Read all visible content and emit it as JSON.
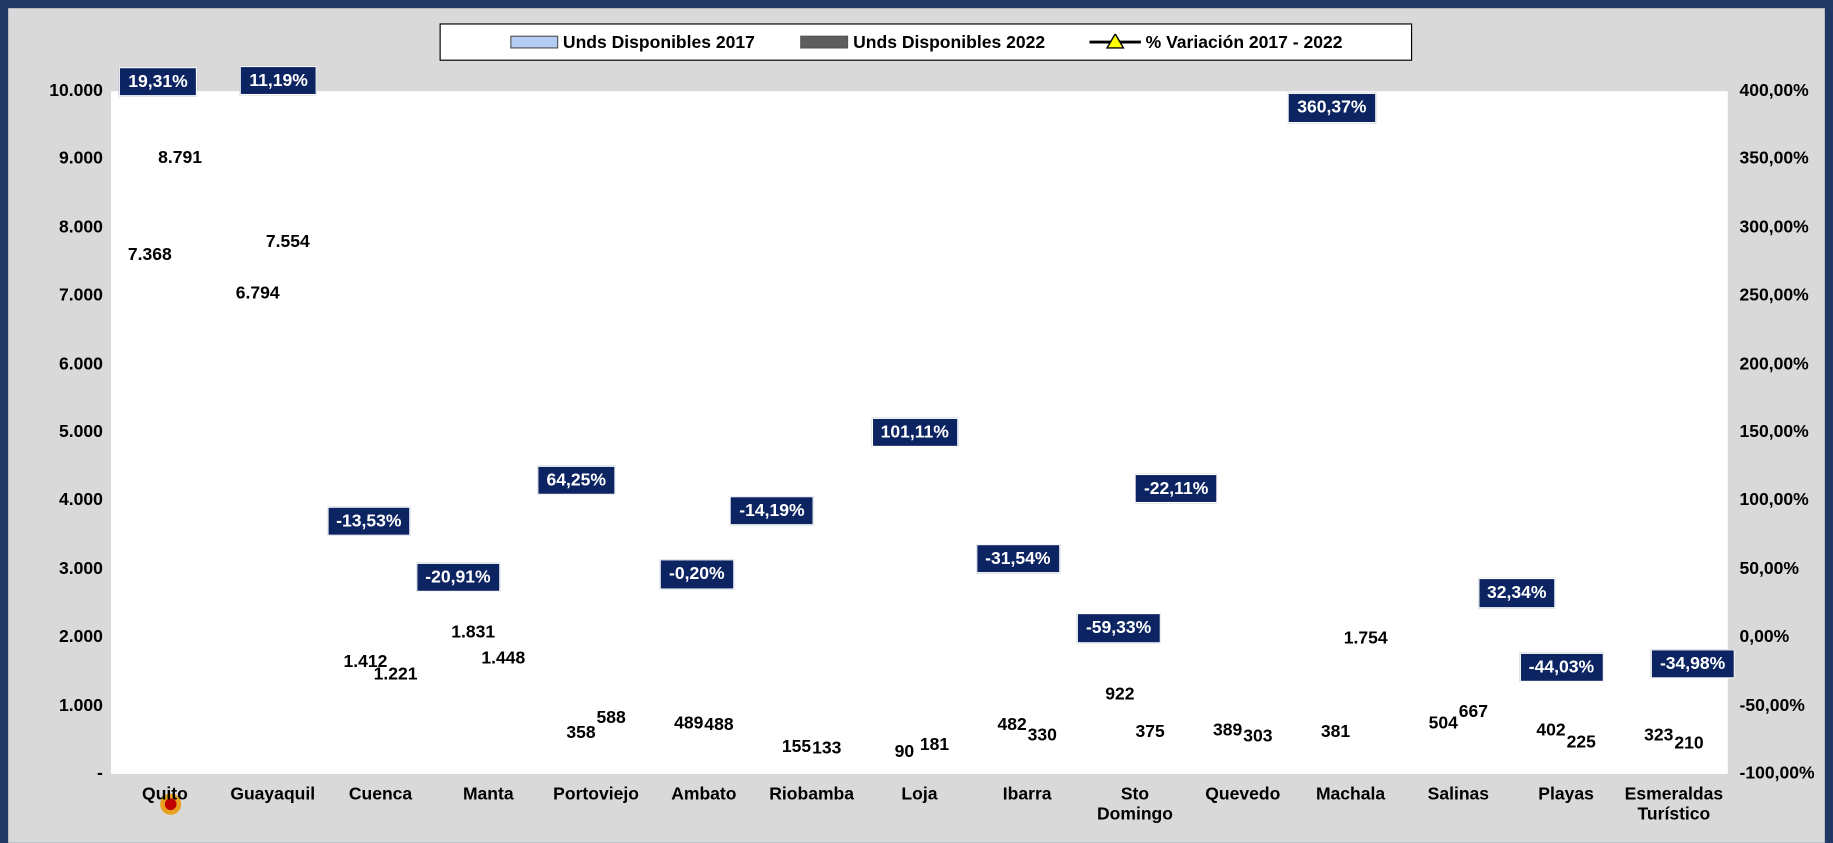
{
  "chart_data": {
    "type": "bar",
    "legend": "top",
    "grid": true,
    "categories": [
      "Quito",
      "Guayaquil",
      "Cuenca",
      "Manta",
      "Portoviejo",
      "Ambato",
      "Riobamba",
      "Loja",
      "Ibarra",
      "Sto\nDomingo",
      "Quevedo",
      "Machala",
      "Salinas",
      "Playas",
      "Esmeraldas\nTurístico"
    ],
    "series": [
      {
        "name": "Unds Disponibles 2017",
        "type": "bar",
        "color": "#b4cdf5",
        "values": [
          7368,
          6794,
          1412,
          1831,
          358,
          489,
          155,
          90,
          482,
          922,
          389,
          381,
          504,
          402,
          323
        ],
        "value_labels": [
          "7.368",
          "6.794",
          "1.412",
          "1.831",
          "358",
          "489",
          "155",
          "90",
          "482",
          "922",
          "389",
          "381",
          "504",
          "402",
          "323"
        ]
      },
      {
        "name": "Unds Disponibles 2022",
        "type": "bar",
        "color": "#5e5e5e",
        "values": [
          8791,
          7554,
          1221,
          1448,
          588,
          488,
          133,
          181,
          330,
          375,
          303,
          1754,
          667,
          225,
          210
        ],
        "value_labels": [
          "8.791",
          "7.554",
          "1.221",
          "1.448",
          "588",
          "488",
          "133",
          "181",
          "330",
          "375",
          "303",
          "1.754",
          "667",
          "225",
          "210"
        ]
      },
      {
        "name": "% Variación 2017 - 2022",
        "type": "line",
        "axis": "y2",
        "color": "#000000",
        "marker_color": "#ffff00",
        "values": [
          19.31,
          11.19,
          -13.53,
          -20.91,
          64.25,
          -0.2,
          -14.19,
          101.11,
          -31.54,
          -59.33,
          -22.11,
          360.37,
          32.34,
          -44.03,
          -34.98
        ],
        "value_labels": [
          "19,31%",
          "11,19%",
          "-13,53%",
          "-20,91%",
          "64,25%",
          "-0,20%",
          "-14,19%",
          "101,11%",
          "-31,54%",
          "-59,33%",
          "-22,11%",
          "360,37%",
          "32,34%",
          "-44,03%",
          "-34,98%"
        ]
      }
    ],
    "ylim": [
      0,
      10000
    ],
    "yticks": [
      {
        "value": 0,
        "label": "-"
      },
      {
        "value": 1000,
        "label": "1.000"
      },
      {
        "value": 2000,
        "label": "2.000"
      },
      {
        "value": 3000,
        "label": "3.000"
      },
      {
        "value": 4000,
        "label": "4.000"
      },
      {
        "value": 5000,
        "label": "5.000"
      },
      {
        "value": 6000,
        "label": "6.000"
      },
      {
        "value": 7000,
        "label": "7.000"
      },
      {
        "value": 8000,
        "label": "8.000"
      },
      {
        "value": 9000,
        "label": "9.000"
      },
      {
        "value": 10000,
        "label": "10.000"
      }
    ],
    "y2lim": [
      -100,
      400
    ],
    "y2ticks": [
      {
        "value": -100,
        "label": "-100,00%"
      },
      {
        "value": -50,
        "label": "-50,00%"
      },
      {
        "value": 0,
        "label": "0,00%"
      },
      {
        "value": 50,
        "label": "50,00%"
      },
      {
        "value": 100,
        "label": "100,00%"
      },
      {
        "value": 150,
        "label": "150,00%"
      },
      {
        "value": 200,
        "label": "200,00%"
      },
      {
        "value": 250,
        "label": "250,00%"
      },
      {
        "value": 300,
        "label": "300,00%"
      },
      {
        "value": 350,
        "label": "350,00%"
      },
      {
        "value": 400,
        "label": "400,00%"
      }
    ]
  }
}
